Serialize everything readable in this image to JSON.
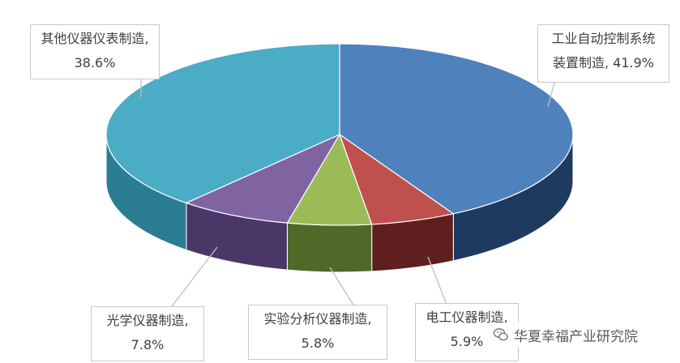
{
  "chart_data": {
    "type": "pie",
    "style": "3d",
    "title": "",
    "slices": [
      {
        "name": "工业自动控制系统装置制造",
        "label_line1": "工业自动控制系统",
        "label_line2": "装置制造, 41.9%",
        "value": 41.9,
        "color": "#4f81bd",
        "side_color": "#1f3a5f"
      },
      {
        "name": "电工仪器制造",
        "label_line1": "电工仪器制造,",
        "label_line2": "5.9%",
        "value": 5.9,
        "color": "#c0504d",
        "side_color": "#5e1f1e"
      },
      {
        "name": "实验分析仪器制造",
        "label_line1": "实验分析仪器制造,",
        "label_line2": "5.8%",
        "value": 5.8,
        "color": "#9bbb59",
        "side_color": "#4f6a28"
      },
      {
        "name": "光学仪器制造",
        "label_line1": "光学仪器制造,",
        "label_line2": "7.8%",
        "value": 7.8,
        "color": "#8064a2",
        "side_color": "#4a3768"
      },
      {
        "name": "其他仪器仪表制造",
        "label_line1": "其他仪器仪表制造,",
        "label_line2": "38.6%",
        "value": 38.6,
        "color": "#4bacc6",
        "side_color": "#2b7d93"
      }
    ]
  },
  "watermark": {
    "text": "华夏幸福产业研究院",
    "icon": "wechat-icon"
  }
}
